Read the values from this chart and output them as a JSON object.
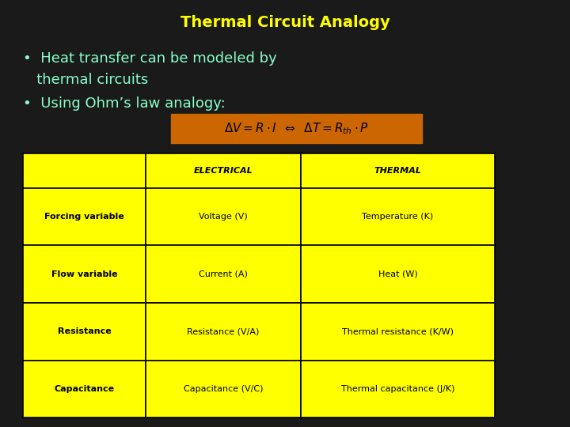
{
  "title": "Thermal Circuit Analogy",
  "title_color": "#FFFF00",
  "background_color": "#1a1a1a",
  "bullet1_line1": "•  Heat transfer can be modeled by",
  "bullet1_line2": "   thermal circuits",
  "bullet2": "•  Using Ohm’s law analogy:",
  "bullet_color": "#88FFCC",
  "formula_bg": "#CC6600",
  "table_bg": "#FFFF00",
  "table_border": "#000000",
  "table_text": "#000000",
  "header_row": [
    "",
    "ELECTRICAL",
    "THERMAL"
  ],
  "table_rows": [
    [
      "Forcing variable",
      "Voltage (V)",
      "Temperature (K)"
    ],
    [
      "Flow variable",
      "Current (A)",
      "Heat (W)"
    ],
    [
      "Resistance",
      "Resistance (V/A)",
      "Thermal resistance (K/W)"
    ],
    [
      "Capacitance",
      "Capacitance (V/C)",
      "Thermal capacitance (J/K)"
    ]
  ],
  "figsize": [
    7.2,
    5.4
  ],
  "dpi": 100
}
